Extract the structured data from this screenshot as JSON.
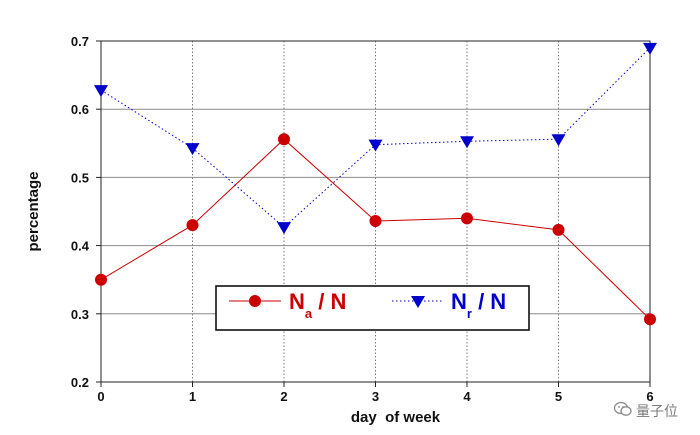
{
  "chart_data": {
    "type": "line",
    "xlabel": "day  of week",
    "ylabel": "percentage",
    "x": [
      0,
      1,
      2,
      3,
      4,
      5,
      6
    ],
    "x_tick_labels": [
      "0",
      "1",
      "2",
      "3",
      "4",
      "5",
      "6"
    ],
    "xlim": [
      0,
      6
    ],
    "ylim": [
      0.2,
      0.7
    ],
    "y_ticks": [
      0.2,
      0.3,
      0.4,
      0.5,
      0.6,
      0.7
    ],
    "y_tick_labels": [
      "0.2",
      "0.3",
      "0.4",
      "0.5",
      "0.6",
      "0.7"
    ],
    "grid": true,
    "legend_placement": "bottom-center",
    "series": [
      {
        "name": "Na / N",
        "legend_main": "N",
        "legend_sub": "a",
        "legend_tail": " / N",
        "values": [
          0.35,
          0.43,
          0.556,
          0.436,
          0.44,
          0.423,
          0.292
        ],
        "color": "#cc0000",
        "line_style": "solid",
        "marker": "circle"
      },
      {
        "name": "Nr / N",
        "legend_main": "N",
        "legend_sub": "r",
        "legend_tail": " / N",
        "values": [
          0.628,
          0.543,
          0.427,
          0.548,
          0.553,
          0.556,
          0.69
        ],
        "color": "#0000cc",
        "line_style": "dotted",
        "marker": "triangle-down"
      }
    ]
  },
  "watermark": {
    "icon": "wechat-icon",
    "text": "量子位"
  }
}
